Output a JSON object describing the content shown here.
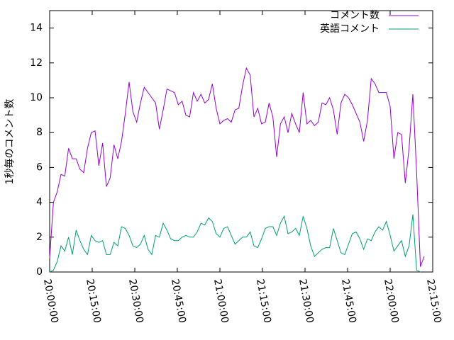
{
  "chart_data": {
    "type": "line",
    "ylabel": "1秒毎のコメント数",
    "x": [
      "20:00:00",
      "20:01:20",
      "20:02:40",
      "20:04:00",
      "20:05:20",
      "20:06:40",
      "20:08:00",
      "20:09:20",
      "20:10:40",
      "20:12:00",
      "20:13:20",
      "20:14:40",
      "20:16:00",
      "20:17:20",
      "20:18:40",
      "20:20:00",
      "20:21:20",
      "20:22:40",
      "20:24:00",
      "20:25:20",
      "20:26:40",
      "20:28:00",
      "20:29:20",
      "20:30:40",
      "20:32:00",
      "20:33:20",
      "20:34:40",
      "20:36:00",
      "20:37:20",
      "20:38:40",
      "20:40:00",
      "20:41:20",
      "20:42:40",
      "20:44:00",
      "20:45:20",
      "20:46:40",
      "20:48:00",
      "20:49:20",
      "20:50:40",
      "20:52:00",
      "20:53:20",
      "20:54:40",
      "20:56:00",
      "20:57:20",
      "20:58:40",
      "21:00:00",
      "21:01:20",
      "21:02:40",
      "21:04:00",
      "21:05:20",
      "21:06:40",
      "21:08:00",
      "21:09:20",
      "21:10:40",
      "21:12:00",
      "21:13:20",
      "21:14:40",
      "21:16:00",
      "21:17:20",
      "21:18:40",
      "21:20:00",
      "21:21:20",
      "21:22:40",
      "21:24:00",
      "21:25:20",
      "21:26:40",
      "21:28:00",
      "21:29:20",
      "21:30:40",
      "21:32:00",
      "21:33:20",
      "21:34:40",
      "21:36:00",
      "21:37:20",
      "21:38:40",
      "21:40:00",
      "21:41:20",
      "21:42:40",
      "21:44:00",
      "21:45:20",
      "21:46:40",
      "21:48:00",
      "21:49:20",
      "21:50:40",
      "21:52:00",
      "21:53:20",
      "21:54:40",
      "21:56:00",
      "21:57:20",
      "21:58:40",
      "22:00:00",
      "22:01:20",
      "22:02:40",
      "22:04:00",
      "22:05:20",
      "22:06:40",
      "22:08:00",
      "22:09:20",
      "22:10:40",
      "22:12:00"
    ],
    "series": [
      {
        "name": "コメント数",
        "color": "#9400d3",
        "values": [
          0.8,
          4.0,
          4.6,
          5.6,
          5.5,
          7.1,
          6.5,
          6.5,
          5.9,
          5.7,
          7.1,
          8.0,
          8.1,
          6.1,
          7.4,
          4.9,
          5.4,
          7.3,
          6.5,
          7.5,
          9.1,
          10.9,
          9.2,
          8.6,
          9.7,
          10.6,
          10.3,
          10.0,
          9.7,
          8.2,
          9.3,
          10.5,
          10.4,
          10.3,
          9.6,
          9.8,
          9.0,
          8.9,
          10.3,
          9.8,
          10.2,
          9.7,
          9.9,
          10.8,
          9.4,
          8.5,
          8.7,
          8.8,
          8.6,
          9.3,
          9.4,
          10.7,
          11.7,
          11.3,
          8.9,
          9.4,
          8.5,
          8.6,
          9.7,
          8.9,
          6.6,
          8.5,
          8.9,
          8.0,
          9.1,
          8.5,
          8.0,
          10.3,
          8.5,
          8.7,
          8.4,
          8.6,
          9.7,
          9.6,
          10.0,
          9.3,
          7.9,
          9.7,
          10.2,
          10.0,
          9.6,
          9.1,
          8.6,
          7.5,
          8.7,
          11.1,
          10.8,
          10.3,
          10.3,
          10.3,
          9.5,
          6.5,
          8.0,
          7.9,
          5.1,
          7.1,
          10.2,
          5.7,
          0.3,
          0.9
        ]
      },
      {
        "name": "英語コメント",
        "color": "#009e73",
        "values": [
          0,
          0.1,
          0.6,
          1.5,
          1.2,
          2.0,
          1.0,
          2.4,
          1.8,
          1.3,
          1.0,
          2.1,
          1.8,
          1.7,
          1.8,
          1.0,
          1.0,
          1.7,
          1.5,
          2.6,
          2.5,
          2.1,
          1.5,
          1.4,
          1.6,
          2.1,
          1.3,
          1.0,
          2.1,
          2.0,
          2.8,
          2.4,
          1.9,
          1.8,
          1.8,
          2.0,
          2.1,
          2.0,
          2.0,
          2.3,
          2.8,
          2.7,
          3.1,
          2.9,
          2.2,
          2.0,
          2.5,
          2.6,
          2.1,
          1.6,
          1.8,
          2.0,
          2.0,
          2.3,
          1.5,
          1.4,
          1.9,
          2.5,
          2.6,
          2.6,
          2.1,
          2.8,
          3.2,
          2.2,
          2.3,
          2.5,
          2.1,
          3.2,
          2.5,
          1.5,
          0.9,
          1.1,
          1.3,
          1.4,
          1.4,
          2.5,
          1.8,
          1.1,
          1.0,
          1.6,
          2.2,
          2.3,
          1.9,
          1.3,
          1.9,
          1.8,
          2.3,
          2.6,
          2.4,
          2.9,
          2.1,
          1.2,
          1.5,
          1.8,
          0.9,
          1.5,
          3.3,
          0.1,
          0,
          null
        ]
      }
    ],
    "xlim": [
      "20:00:00",
      "22:15:00"
    ],
    "xticks": [
      "20:00:00",
      "20:15:00",
      "20:30:00",
      "20:45:00",
      "21:00:00",
      "21:15:00",
      "21:30:00",
      "21:45:00",
      "22:00:00",
      "22:15:00"
    ],
    "ylim": [
      0,
      15
    ],
    "yticks": [
      0,
      2,
      4,
      6,
      8,
      10,
      12,
      14
    ],
    "legend": "upper right"
  }
}
